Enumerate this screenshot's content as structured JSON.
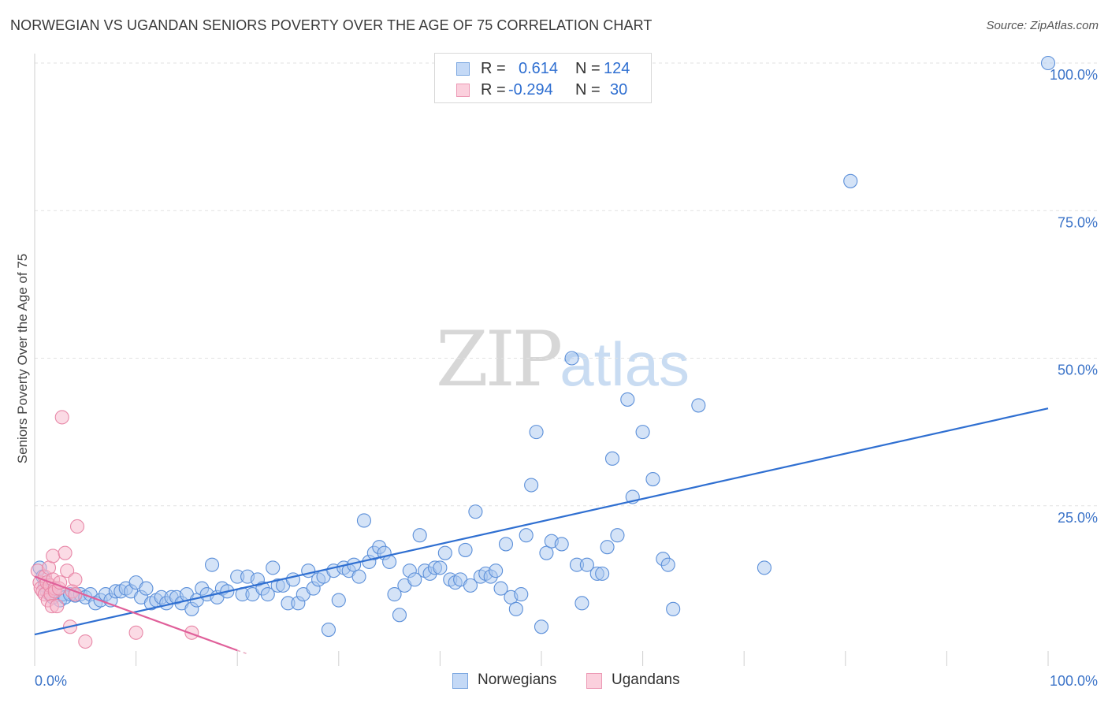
{
  "title": "NORWEGIAN VS UGANDAN SENIORS POVERTY OVER THE AGE OF 75 CORRELATION CHART",
  "source": "Source: ZipAtlas.com",
  "watermark": {
    "zip": "ZIP",
    "atlas": "atlas"
  },
  "stats": [
    {
      "r_label": "R =",
      "r_value": "0.614",
      "n_label": "N =",
      "n_value": "124",
      "color": "#a9c8f0"
    },
    {
      "r_label": "R =",
      "r_value": "-0.294",
      "n_label": "N =",
      "n_value": "30",
      "color": "#f7b8cb"
    }
  ],
  "legend": [
    {
      "label": "Norwegians",
      "color": "#a9c8f0"
    },
    {
      "label": "Ugandans",
      "color": "#f7b8cb"
    }
  ],
  "chart_data": {
    "type": "scatter",
    "ylabel": "Seniors Poverty Over the Age of 75",
    "xlim": [
      0,
      100
    ],
    "ylim": [
      0,
      100
    ],
    "x_tick_labels": [
      {
        "value": 0,
        "label": "0.0%"
      },
      {
        "value": 100,
        "label": "100.0%"
      }
    ],
    "y_tick_labels": [
      {
        "value": 25,
        "label": "25.0%"
      },
      {
        "value": 50,
        "label": "50.0%"
      },
      {
        "value": 75,
        "label": "75.0%"
      },
      {
        "value": 100,
        "label": "100.0%"
      }
    ],
    "grid": true,
    "series": [
      {
        "name": "Norwegians",
        "color": "#5b8fd9",
        "fill": "#a9c8f0",
        "trendline": {
          "x": [
            0,
            100
          ],
          "y": [
            3.2,
            41.5
          ],
          "color": "#2f6fd1"
        },
        "points": [
          [
            0.5,
            14.5
          ],
          [
            0.8,
            13
          ],
          [
            1,
            11.5
          ],
          [
            1.2,
            10.5
          ],
          [
            1.5,
            10
          ],
          [
            1.8,
            9.5
          ],
          [
            2,
            11
          ],
          [
            2.5,
            9
          ],
          [
            2.8,
            10
          ],
          [
            3,
            9.5
          ],
          [
            3.5,
            10
          ],
          [
            4,
            9.8
          ],
          [
            4.5,
            10
          ],
          [
            5,
            9.5
          ],
          [
            5.5,
            10
          ],
          [
            6,
            8.5
          ],
          [
            6.5,
            9
          ],
          [
            7,
            10
          ],
          [
            7.5,
            9
          ],
          [
            8,
            10.5
          ],
          [
            8.5,
            10.5
          ],
          [
            9,
            11
          ],
          [
            9.5,
            10.5
          ],
          [
            10,
            12
          ],
          [
            10.5,
            9.5
          ],
          [
            11,
            11
          ],
          [
            11.5,
            8.5
          ],
          [
            12,
            9
          ],
          [
            12.5,
            9.5
          ],
          [
            13,
            8.5
          ],
          [
            13.5,
            9.5
          ],
          [
            14,
            9.5
          ],
          [
            14.5,
            8.5
          ],
          [
            15,
            10
          ],
          [
            15.5,
            7.5
          ],
          [
            16,
            9
          ],
          [
            16.5,
            11
          ],
          [
            17,
            10
          ],
          [
            17.5,
            15
          ],
          [
            18,
            9.5
          ],
          [
            18.5,
            11
          ],
          [
            19,
            10.5
          ],
          [
            20,
            13
          ],
          [
            20.5,
            10
          ],
          [
            21,
            13
          ],
          [
            21.5,
            10
          ],
          [
            22,
            12.5
          ],
          [
            22.5,
            11
          ],
          [
            23,
            10
          ],
          [
            23.5,
            14.5
          ],
          [
            24,
            11.5
          ],
          [
            24.5,
            11.5
          ],
          [
            25,
            8.5
          ],
          [
            25.5,
            12.5
          ],
          [
            26,
            8.5
          ],
          [
            26.5,
            10
          ],
          [
            27,
            14
          ],
          [
            27.5,
            11
          ],
          [
            28,
            12.5
          ],
          [
            28.5,
            13
          ],
          [
            29,
            4
          ],
          [
            29.5,
            14
          ],
          [
            30,
            9
          ],
          [
            30.5,
            14.5
          ],
          [
            31,
            14
          ],
          [
            31.5,
            15
          ],
          [
            32,
            13
          ],
          [
            32.5,
            22.5
          ],
          [
            33,
            15.5
          ],
          [
            33.5,
            17
          ],
          [
            34,
            18
          ],
          [
            34.5,
            17
          ],
          [
            35,
            15.5
          ],
          [
            35.5,
            10
          ],
          [
            36,
            6.5
          ],
          [
            36.5,
            11.5
          ],
          [
            37,
            14
          ],
          [
            37.5,
            12.5
          ],
          [
            38,
            20
          ],
          [
            38.5,
            14
          ],
          [
            39,
            13.5
          ],
          [
            39.5,
            14.5
          ],
          [
            40,
            14.5
          ],
          [
            40.5,
            17
          ],
          [
            41,
            12.5
          ],
          [
            41.5,
            12
          ],
          [
            42,
            12.5
          ],
          [
            42.5,
            17.5
          ],
          [
            43,
            11.5
          ],
          [
            43.5,
            24
          ],
          [
            44,
            13
          ],
          [
            44.5,
            13.5
          ],
          [
            45,
            13
          ],
          [
            45.5,
            14
          ],
          [
            46,
            11
          ],
          [
            46.5,
            18.5
          ],
          [
            47,
            9.5
          ],
          [
            47.5,
            7.5
          ],
          [
            48,
            10
          ],
          [
            48.5,
            20
          ],
          [
            49,
            28.5
          ],
          [
            49.5,
            37.5
          ],
          [
            50,
            4.5
          ],
          [
            50.5,
            17
          ],
          [
            51,
            19
          ],
          [
            52,
            18.5
          ],
          [
            53,
            50
          ],
          [
            53.5,
            15
          ],
          [
            54,
            8.5
          ],
          [
            54.5,
            15
          ],
          [
            55.5,
            13.5
          ],
          [
            56,
            13.5
          ],
          [
            56.5,
            18
          ],
          [
            57,
            33
          ],
          [
            57.5,
            20
          ],
          [
            58.5,
            43
          ],
          [
            59,
            26.5
          ],
          [
            60,
            37.5
          ],
          [
            61,
            29.5
          ],
          [
            62,
            16
          ],
          [
            62.5,
            15
          ],
          [
            63,
            7.5
          ],
          [
            65.5,
            42
          ],
          [
            72,
            14.5
          ],
          [
            80.5,
            80
          ],
          [
            100,
            100
          ]
        ]
      },
      {
        "name": "Ugandans",
        "color": "#e888a8",
        "fill": "#f7b8cb",
        "trendline": {
          "x": [
            0,
            20
          ],
          "y": [
            13,
            0.5
          ],
          "color": "#e0609a"
        },
        "trendline_dashed": {
          "x": [
            20,
            30
          ],
          "y": [
            0.5,
            -5.5
          ]
        },
        "points": [
          [
            0.3,
            14
          ],
          [
            0.5,
            12
          ],
          [
            0.6,
            11
          ],
          [
            0.8,
            10.5
          ],
          [
            1,
            10
          ],
          [
            1,
            13
          ],
          [
            1.2,
            12
          ],
          [
            1.3,
            9
          ],
          [
            1.4,
            14.5
          ],
          [
            1.5,
            11.5
          ],
          [
            1.6,
            10
          ],
          [
            1.7,
            8
          ],
          [
            1.8,
            12.5
          ],
          [
            1.8,
            16.5
          ],
          [
            2,
            11
          ],
          [
            2,
            10.5
          ],
          [
            2.2,
            8
          ],
          [
            2.4,
            11
          ],
          [
            2.5,
            12
          ],
          [
            2.7,
            40
          ],
          [
            3,
            17
          ],
          [
            3.2,
            14
          ],
          [
            3.5,
            4.5
          ],
          [
            3.7,
            10.5
          ],
          [
            4,
            12.5
          ],
          [
            4,
            10
          ],
          [
            4.2,
            21.5
          ],
          [
            5,
            2
          ],
          [
            10,
            3.5
          ],
          [
            15.5,
            3.5
          ]
        ]
      }
    ]
  }
}
